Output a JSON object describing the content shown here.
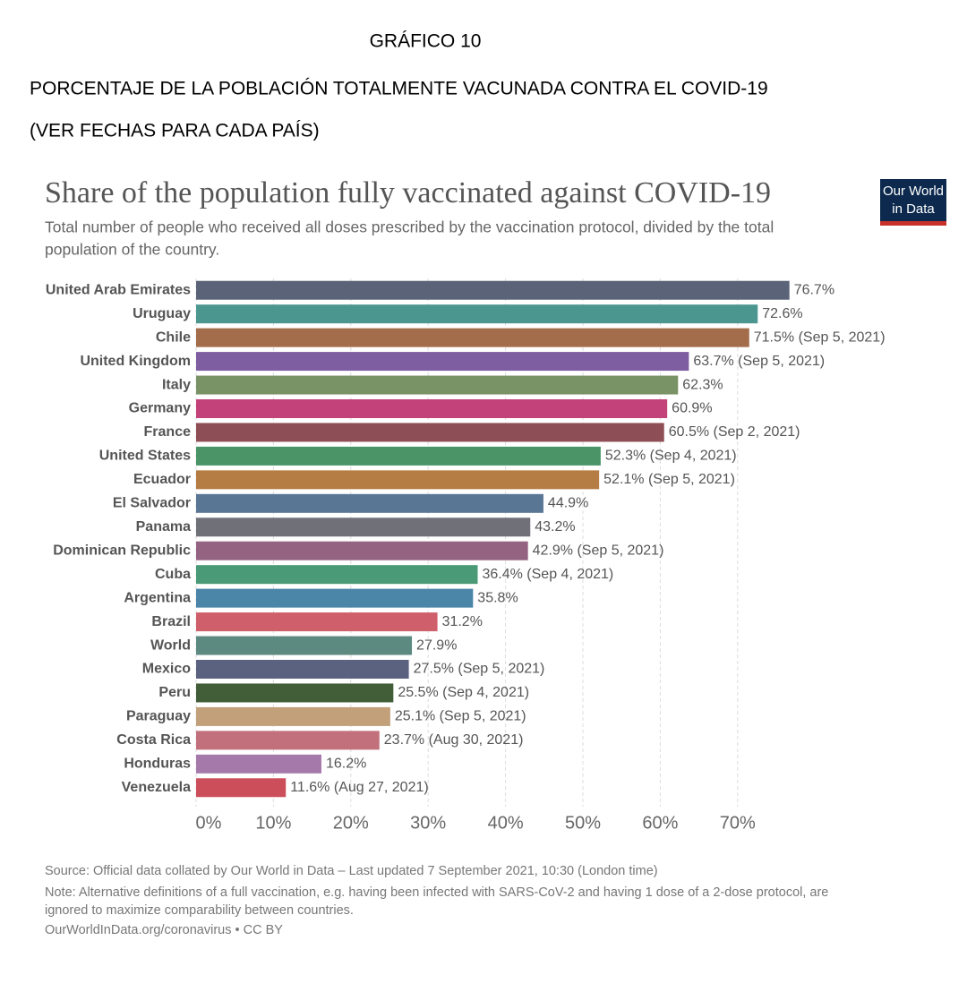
{
  "header": {
    "label": "GRÁFICO 10",
    "title": "PORCENTAJE DE LA POBLACIÓN TOTALMENTE VACUNADA CONTRA EL COVID-19",
    "subtitle": "(VER FECHAS PARA CADA PAÍS)"
  },
  "chart_data": {
    "type": "bar",
    "orientation": "horizontal",
    "title": "Share of the population fully vaccinated against COVID-19",
    "subtitle": [
      "Total number of people who received all doses prescribed by the vaccination protocol, divided by the total",
      "population of the country."
    ],
    "logo": [
      "Our World",
      "in Data"
    ],
    "categories": [
      "United Arab Emirates",
      "Uruguay",
      "Chile",
      "United Kingdom",
      "Italy",
      "Germany",
      "France",
      "United States",
      "Ecuador",
      "El Salvador",
      "Panama",
      "Dominican Republic",
      "Cuba",
      "Argentina",
      "Brazil",
      "World",
      "Mexico",
      "Peru",
      "Paraguay",
      "Costa Rica",
      "Honduras",
      "Venezuela"
    ],
    "values": [
      76.7,
      72.6,
      71.5,
      63.7,
      62.3,
      60.9,
      60.5,
      52.3,
      52.1,
      44.9,
      43.2,
      42.9,
      36.4,
      35.8,
      31.2,
      27.9,
      27.5,
      25.5,
      25.1,
      23.7,
      16.2,
      11.6
    ],
    "value_labels": [
      "76.7%",
      "72.6%",
      "71.5% (Sep 5, 2021)",
      "63.7% (Sep 5, 2021)",
      "62.3%",
      "60.9%",
      "60.5% (Sep 2, 2021)",
      "52.3% (Sep 4, 2021)",
      "52.1% (Sep 5, 2021)",
      "44.9%",
      "43.2%",
      "42.9% (Sep 5, 2021)",
      "36.4% (Sep 4, 2021)",
      "35.8%",
      "31.2%",
      "27.9%",
      "27.5% (Sep 5, 2021)",
      "25.5% (Sep 4, 2021)",
      "25.1% (Sep 5, 2021)",
      "23.7% (Aug 30, 2021)",
      "16.2%",
      "11.6% (Aug 27, 2021)"
    ],
    "colors": [
      "#5a6378",
      "#4c9690",
      "#a36c4a",
      "#7e5ea0",
      "#7a9366",
      "#c4427a",
      "#8e4e56",
      "#4a9468",
      "#b57c43",
      "#5a7695",
      "#707078",
      "#946381",
      "#4a9a78",
      "#4b85a8",
      "#cf5f6a",
      "#5d8a80",
      "#5a6280",
      "#425e39",
      "#c1a07a",
      "#c2717c",
      "#a57aab",
      "#cc4e5a"
    ],
    "xlim": [
      0,
      77
    ],
    "xticks": [
      {
        "value": 0,
        "label": "0%"
      },
      {
        "value": 10,
        "label": "10%"
      },
      {
        "value": 20,
        "label": "20%"
      },
      {
        "value": 30,
        "label": "30%"
      },
      {
        "value": 40,
        "label": "40%"
      },
      {
        "value": 50,
        "label": "50%"
      },
      {
        "value": 60,
        "label": "60%"
      },
      {
        "value": 70,
        "label": "70%"
      }
    ],
    "grid": true,
    "source": "Source: Official data collated by Our World in Data – Last updated 7 September 2021, 10:30 (London time)",
    "note": [
      "Note: Alternative definitions of a full vaccination, e.g. having been infected with SARS-CoV-2 and having 1 dose of a 2-dose protocol, are",
      "ignored to maximize comparability between countries."
    ],
    "url": "OurWorldInData.org/coronavirus • CC BY"
  }
}
